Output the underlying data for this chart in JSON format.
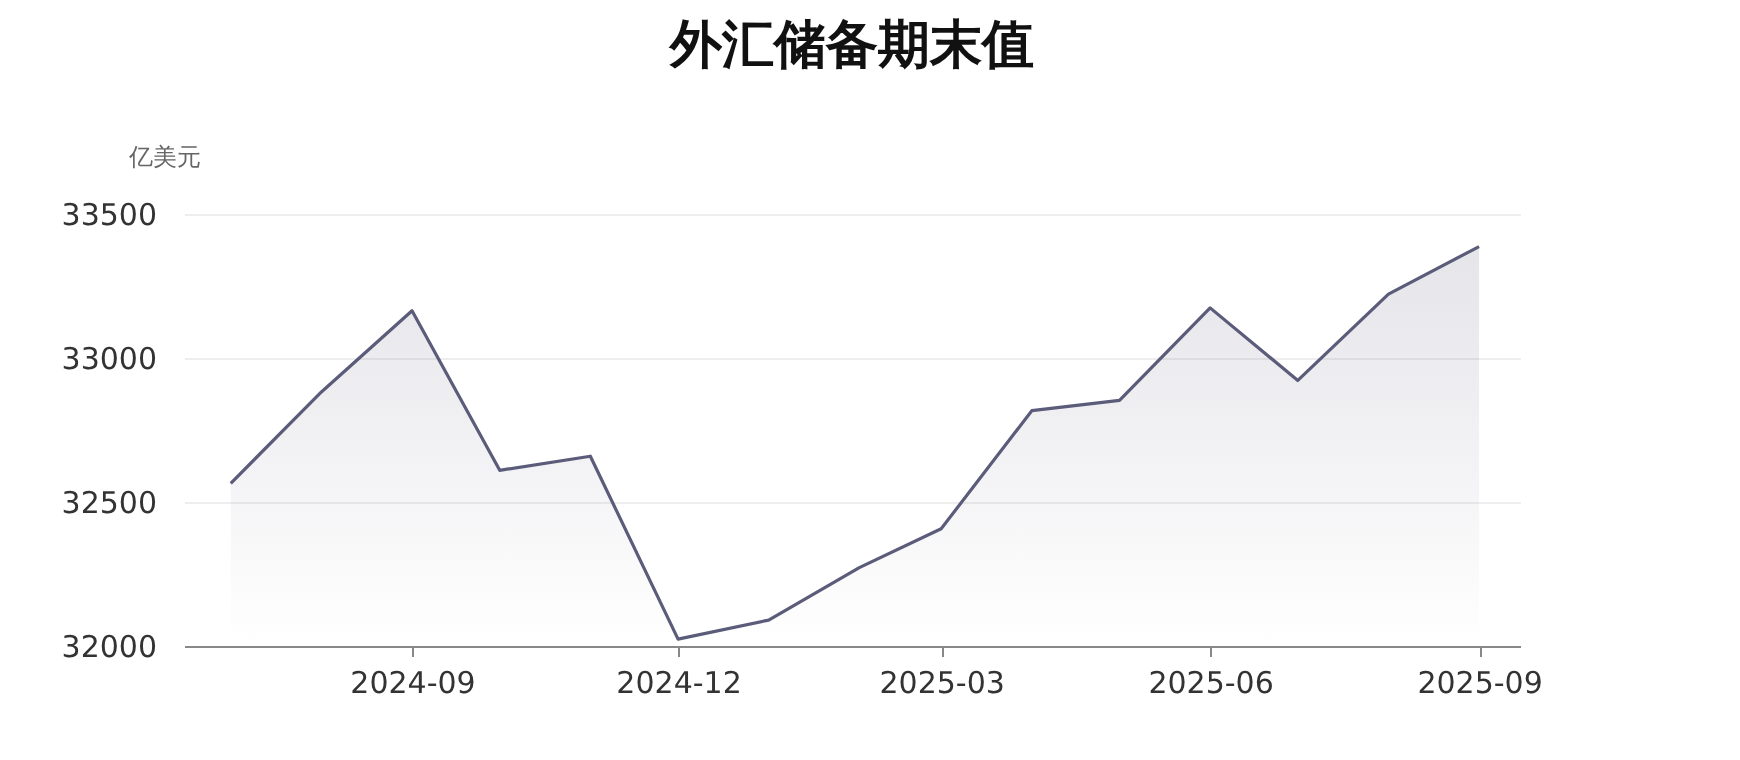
{
  "chart_data": {
    "type": "area",
    "title": "外汇储备期末值",
    "ylabel": "亿美元",
    "x": [
      "2024-07",
      "2024-08",
      "2024-09",
      "2024-10",
      "2024-11",
      "2024-12",
      "2025-01",
      "2025-02",
      "2025-03",
      "2025-04",
      "2025-05",
      "2025-06",
      "2025-07",
      "2025-08",
      "2025-09"
    ],
    "series": [
      {
        "color": "#5b5b7a",
        "values": [
          32565,
          32882,
          33164,
          32610,
          32659,
          32024,
          32090,
          32272,
          32407,
          32817,
          32853,
          33174,
          32922,
          33222,
          33387
        ]
      }
    ],
    "xlim": [
      "2024-06-15",
      "2025-09-15"
    ],
    "xticks": [
      "2024-09",
      "2024-12",
      "2025-03",
      "2025-06",
      "2025-09"
    ],
    "ylim": [
      32000,
      33500
    ],
    "yticks": [
      32000,
      32500,
      33000,
      33500
    ],
    "grid": "y",
    "legend": false
  }
}
